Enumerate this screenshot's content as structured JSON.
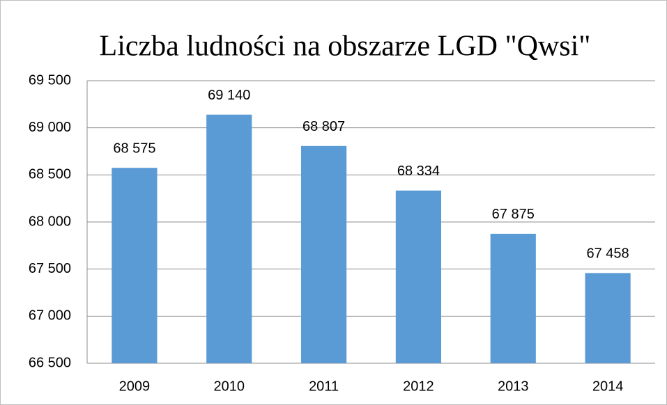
{
  "chart_data": {
    "type": "bar",
    "title": "Liczba ludności na obszarze LGD \"Qwsi\"",
    "categories": [
      "2009",
      "2010",
      "2011",
      "2012",
      "2013",
      "2014"
    ],
    "values": [
      68575,
      69140,
      68807,
      68334,
      67875,
      67458
    ],
    "value_labels": [
      "68 575",
      "69 140",
      "68 807",
      "68 334",
      "67 875",
      "67 458"
    ],
    "color": "#5b9bd5",
    "ylim": [
      66500,
      69500
    ],
    "yticks": [
      {
        "value": 66500,
        "label": "66 500"
      },
      {
        "value": 67000,
        "label": "67 000"
      },
      {
        "value": 67500,
        "label": "67 500"
      },
      {
        "value": 68000,
        "label": "68 000"
      },
      {
        "value": 68500,
        "label": "68 500"
      },
      {
        "value": 69000,
        "label": "69 000"
      },
      {
        "value": 69500,
        "label": "69 500"
      }
    ],
    "grid": true
  }
}
